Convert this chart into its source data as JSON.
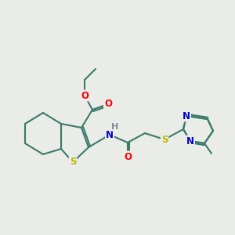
{
  "background_color": "#eaece8",
  "bond_color": "#3a7a6a",
  "atom_colors": {
    "O": "#ff0000",
    "N": "#0000cc",
    "S": "#bbbb00",
    "H": "#888899",
    "C": "#3a7a6a"
  },
  "figsize": [
    3.0,
    3.0
  ],
  "dpi": 100
}
